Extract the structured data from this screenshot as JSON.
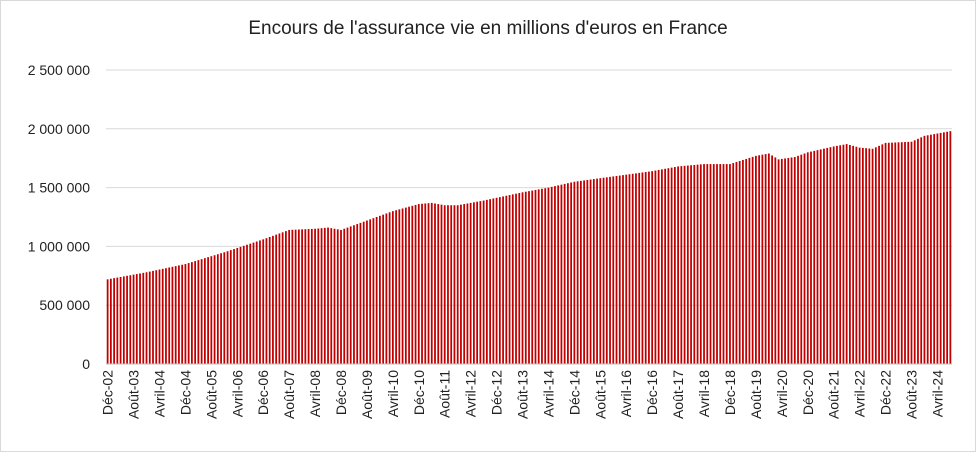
{
  "chart_data": {
    "type": "bar",
    "title": "Encours de l'assurance vie en millions d'euros en France",
    "xlabel": "",
    "ylabel": "",
    "ylim": [
      0,
      2500000
    ],
    "y_ticks": [
      0,
      500000,
      1000000,
      1500000,
      2000000,
      2500000
    ],
    "y_tick_labels": [
      "0",
      "500 000",
      "1 000 000",
      "1 500 000",
      "2 000 000",
      "2 500 000"
    ],
    "x_tick_labels": [
      "Déc-02",
      "Août-03",
      "Avril-04",
      "Déc-04",
      "Août-05",
      "Avril-06",
      "Déc-06",
      "Août-07",
      "Avril-08",
      "Déc-08",
      "Août-09",
      "Avril-10",
      "Déc-10",
      "Août-11",
      "Avril-12",
      "Déc-12",
      "Août-13",
      "Avril-14",
      "Déc-14",
      "Août-15",
      "Avril-16",
      "Déc-16",
      "Août-17",
      "Avril-18",
      "Déc-18",
      "Août-19",
      "Avril-20",
      "Déc-20",
      "Août-21",
      "Avril-22",
      "Déc-22",
      "Août-23",
      "Avril-24"
    ],
    "x_start": "Déc-02",
    "x_frequency": "monthly",
    "grid": true,
    "color": "#c00000",
    "anchors": [
      [
        "Déc-02",
        720000
      ],
      [
        "Déc-03",
        780000
      ],
      [
        "Déc-04",
        850000
      ],
      [
        "Déc-05",
        950000
      ],
      [
        "Déc-06",
        1060000
      ],
      [
        "Août-07",
        1140000
      ],
      [
        "Avril-08",
        1150000
      ],
      [
        "Août-08",
        1160000
      ],
      [
        "Déc-08",
        1140000
      ],
      [
        "Août-09",
        1220000
      ],
      [
        "Avril-10",
        1300000
      ],
      [
        "Déc-10",
        1360000
      ],
      [
        "Avril-11",
        1370000
      ],
      [
        "Août-11",
        1350000
      ],
      [
        "Déc-11",
        1350000
      ],
      [
        "Août-12",
        1390000
      ],
      [
        "Août-13",
        1460000
      ],
      [
        "Avril-14",
        1500000
      ],
      [
        "Déc-14",
        1550000
      ],
      [
        "Août-15",
        1580000
      ],
      [
        "Avril-16",
        1610000
      ],
      [
        "Déc-16",
        1640000
      ],
      [
        "Août-17",
        1680000
      ],
      [
        "Avril-18",
        1700000
      ],
      [
        "Déc-18",
        1700000
      ],
      [
        "Août-19",
        1770000
      ],
      [
        "Déc-19",
        1790000
      ],
      [
        "Mars-20",
        1740000
      ],
      [
        "Août-20",
        1760000
      ],
      [
        "Déc-20",
        1800000
      ],
      [
        "Août-21",
        1850000
      ],
      [
        "Déc-21",
        1870000
      ],
      [
        "Avril-22",
        1840000
      ],
      [
        "Août-22",
        1830000
      ],
      [
        "Déc-22",
        1880000
      ],
      [
        "Août-23",
        1890000
      ],
      [
        "Déc-23",
        1940000
      ],
      [
        "Août-24",
        1980000
      ]
    ]
  }
}
